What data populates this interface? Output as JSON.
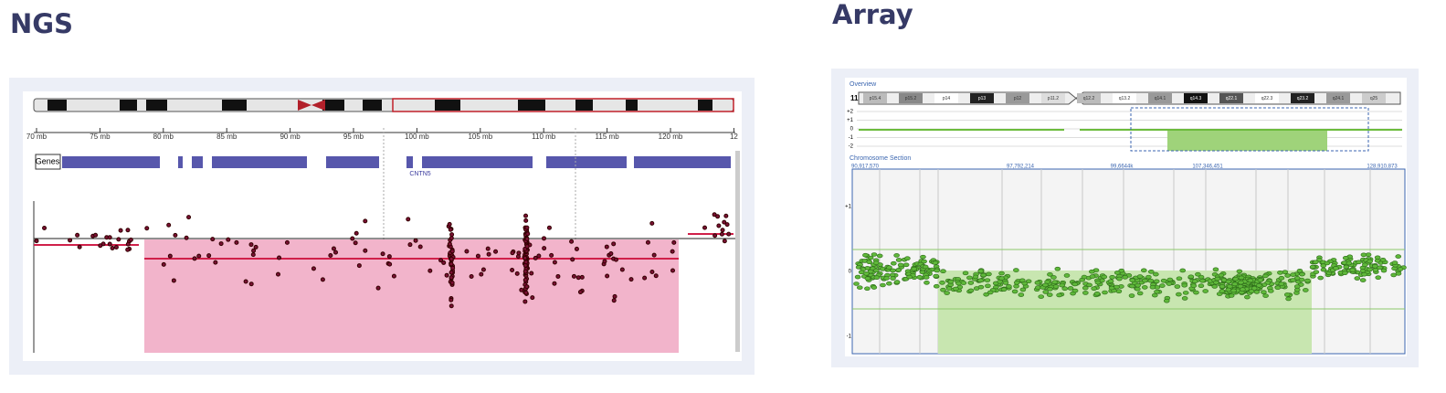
{
  "ngs": {
    "title": "NGS",
    "axis_labels": [
      "70 mb",
      "75 mb",
      "80 mb",
      "85 mb",
      "90 mb",
      "95 mb",
      "100 mb",
      "105 mb",
      "110 mb",
      "115 mb",
      "120 mb",
      "12"
    ],
    "genes_label": "Genes",
    "gene_names": [
      "CNTN5"
    ]
  },
  "array": {
    "title": "Array",
    "overview_label": "Overview",
    "chromosome": "11",
    "bands": [
      "p15.4",
      "p15.2",
      "p14",
      "p13",
      "p12",
      "p11.2",
      "q12.2",
      "q13.2",
      "q14.1",
      "q14.3",
      "q22.1",
      "q22.3",
      "q23.2",
      "q24.1",
      "q25"
    ],
    "overview_ticks": [
      "+2",
      "+1",
      "0",
      "-1",
      "-2"
    ],
    "section_label": "Chromosome Section",
    "section_ticks": [
      "+1",
      "0",
      "-1"
    ],
    "coordinates": [
      "90,917,570",
      "97,792,214",
      "99,6644k",
      "107,346,451",
      "128,910,873"
    ]
  }
}
